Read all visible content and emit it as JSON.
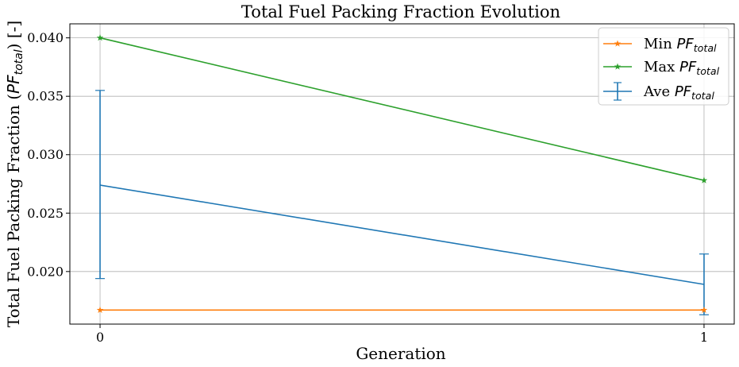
{
  "chart_data": {
    "type": "line",
    "title": "Total Fuel Packing Fraction Evolution",
    "xlabel": "Generation",
    "ylabel": "Total Fuel Packing Fraction (PF_total) [-]",
    "ylabel_parts": {
      "prefix": "Total Fuel Packing Fraction (",
      "sym": "PF",
      "sub": "total",
      "suffix": ") [-]"
    },
    "x": [
      0,
      1
    ],
    "xticks": [
      "0",
      "1"
    ],
    "xlim": [
      -0.05,
      1.05
    ],
    "ylim": [
      0.0155,
      0.0412
    ],
    "yticks": [
      "0.020",
      "0.025",
      "0.030",
      "0.035",
      "0.040"
    ],
    "ytick_values": [
      0.02,
      0.025,
      0.03,
      0.035,
      0.04
    ],
    "grid": true,
    "legend_position": "top-right",
    "series": [
      {
        "key": "min",
        "name": "Min PF_total",
        "legend_prefix": "Min ",
        "legend_sym": "PF",
        "legend_sub": "total",
        "values": [
          0.0167,
          0.0167
        ],
        "color": "#ff7f0e",
        "marker": "star"
      },
      {
        "key": "max",
        "name": "Max PF_total",
        "legend_prefix": "Max ",
        "legend_sym": "PF",
        "legend_sub": "total",
        "values": [
          0.04,
          0.0278
        ],
        "color": "#2ca02c",
        "marker": "star"
      },
      {
        "key": "ave",
        "name": "Ave PF_total",
        "legend_prefix": "Ave ",
        "legend_sym": "PF",
        "legend_sub": "total",
        "values": [
          0.0274,
          0.0189
        ],
        "error_low": [
          0.0194,
          0.0163
        ],
        "error_high": [
          0.0355,
          0.0215
        ],
        "color": "#1f77b4",
        "marker": "errorbar"
      }
    ]
  }
}
